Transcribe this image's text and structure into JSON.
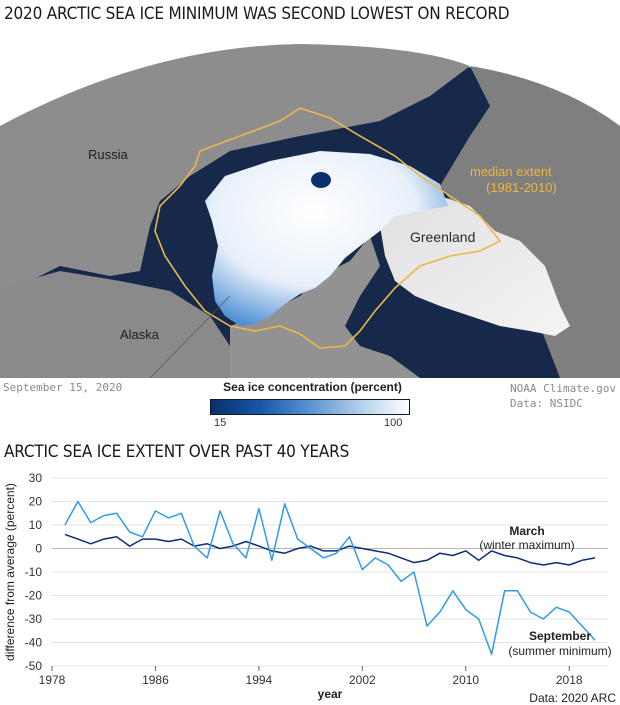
{
  "map": {
    "title": "2020 ARCTIC SEA ICE MINIMUM WAS SECOND LOWEST ON RECORD",
    "labels": {
      "russia": "Russia",
      "alaska": "Alaska",
      "greenland": "Greenland",
      "median_line1": "median extent",
      "median_line2": "(1981-2010)"
    },
    "date": "September 15, 2020",
    "credit_line1": "NOAA Climate.gov",
    "credit_line2": "Data: NSIDC",
    "legend": {
      "title": "Sea ice concentration (percent)",
      "min": "15",
      "max": "100"
    },
    "colors": {
      "ocean": "#17294a",
      "land": "#8d8d8d",
      "median_line": "#e8b84a",
      "ice": "#ffffff"
    }
  },
  "chart_data": {
    "type": "line",
    "title": "ARCTIC SEA ICE EXTENT OVER PAST 40 YEARS",
    "xlabel": "year",
    "ylabel": "difference from average (percent)",
    "xlim": [
      1978,
      2021
    ],
    "ylim": [
      -50,
      30
    ],
    "xticks": [
      1978,
      1986,
      1994,
      2002,
      2010,
      2018
    ],
    "yticks": [
      30,
      20,
      10,
      0,
      -10,
      -20,
      -30,
      -40,
      -50
    ],
    "grid": "horizontal",
    "x": [
      1979,
      1980,
      1981,
      1982,
      1983,
      1984,
      1985,
      1986,
      1987,
      1988,
      1989,
      1990,
      1991,
      1992,
      1993,
      1994,
      1995,
      1996,
      1997,
      1998,
      1999,
      2000,
      2001,
      2002,
      2003,
      2004,
      2005,
      2006,
      2007,
      2008,
      2009,
      2010,
      2011,
      2012,
      2013,
      2014,
      2015,
      2016,
      2017,
      2018,
      2019,
      2020
    ],
    "series": [
      {
        "name": "March",
        "sublabel": "(winter maximum)",
        "color": "#0d2d73",
        "values": [
          6,
          4,
          2,
          4,
          5,
          1,
          4,
          4,
          3,
          4,
          1,
          2,
          0,
          1,
          3,
          1,
          -1,
          -2,
          0,
          1,
          -1,
          -1,
          1,
          0,
          -1,
          -2,
          -4,
          -6,
          -5,
          -2,
          -3,
          -1,
          -5,
          -1,
          -3,
          -4,
          -6,
          -7,
          -6,
          -7,
          -5,
          -4
        ]
      },
      {
        "name": "September",
        "sublabel": "(summer minimum)",
        "color": "#2f9ce8",
        "values": [
          10,
          20,
          11,
          14,
          15,
          7,
          5,
          16,
          13,
          15,
          1,
          -4,
          16,
          2,
          -4,
          17,
          -5,
          19,
          4,
          0,
          -4,
          -2,
          5,
          -9,
          -4,
          -7,
          -14,
          -10,
          -33,
          -27,
          -18,
          -26,
          -30,
          -45,
          -18,
          -18,
          -27,
          -30,
          -25,
          -27,
          -33,
          -39
        ]
      }
    ],
    "source": "Data: 2020 ARC"
  }
}
